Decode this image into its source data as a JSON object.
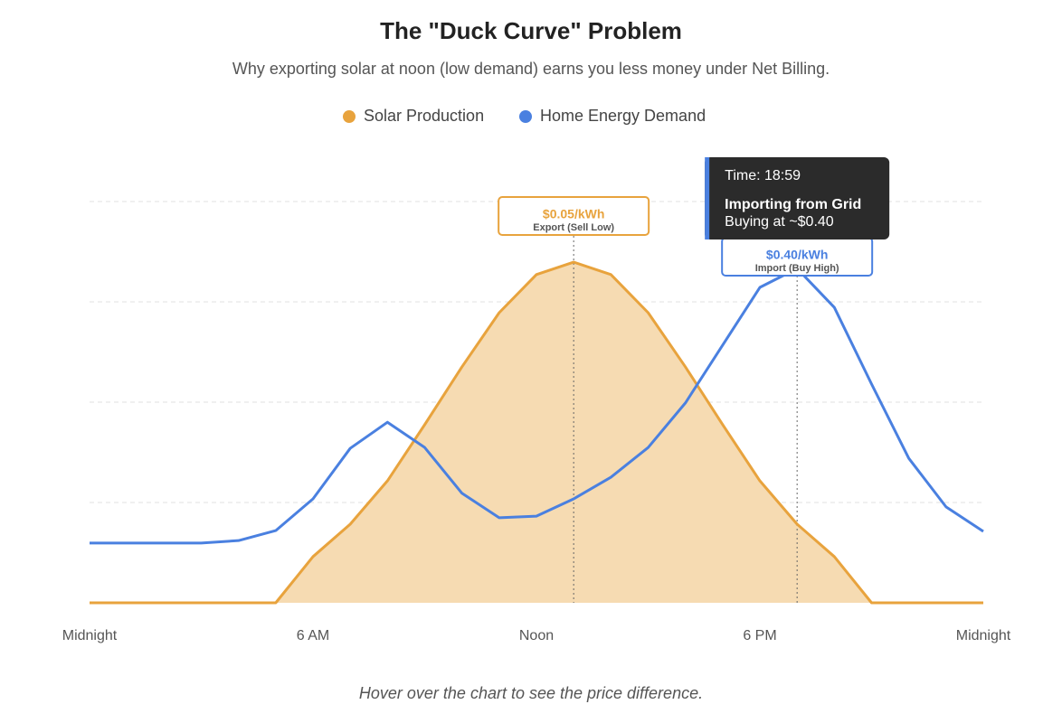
{
  "chart_data": {
    "type": "line",
    "title": "The \"Duck Curve\" Problem",
    "subtitle": "Why exporting solar at noon (low demand) earns you less money under Net Billing.",
    "x": [
      0,
      1,
      2,
      3,
      4,
      5,
      6,
      7,
      8,
      9,
      10,
      11,
      12,
      13,
      14,
      15,
      16,
      17,
      18,
      19,
      20,
      21,
      22,
      23,
      24
    ],
    "xlim": [
      0,
      24
    ],
    "xticks": [
      {
        "value": 0,
        "label": "Midnight"
      },
      {
        "value": 6,
        "label": "6 AM"
      },
      {
        "value": 12,
        "label": "Noon"
      },
      {
        "value": 18,
        "label": "6 PM"
      },
      {
        "value": 24,
        "label": "Midnight"
      }
    ],
    "ylim": [
      0,
      100
    ],
    "yticks": [
      0,
      25,
      50,
      75,
      100
    ],
    "grid": true,
    "series": [
      {
        "name": "Solar Production",
        "color": "#e8a33d",
        "fill": "#f6dbb2",
        "values": [
          0,
          0,
          0,
          0,
          0,
          0,
          11.5,
          19.6,
          30.4,
          44.4,
          58.8,
          72.3,
          81.8,
          84.9,
          81.8,
          72.3,
          58.8,
          44.4,
          30.4,
          19.6,
          11.5,
          0,
          0,
          0,
          0
        ]
      },
      {
        "name": "Home Energy Demand",
        "color": "#4a80e0",
        "values": [
          14.9,
          14.9,
          14.9,
          14.9,
          15.5,
          18.0,
          25.9,
          38.5,
          45.0,
          38.7,
          27.3,
          21.2,
          21.6,
          25.9,
          31.3,
          38.7,
          49.8,
          64.2,
          78.6,
          83.3,
          73.6,
          54.5,
          36.0,
          23.9,
          17.8
        ]
      }
    ],
    "annotations": [
      {
        "x": 13,
        "price": "$0.05/kWh",
        "label": "Export (Sell Low)",
        "color": "#e8a33d"
      },
      {
        "x": 19,
        "price": "$0.40/kWh",
        "label": "Import (Buy High)",
        "color": "#4a80e0"
      }
    ],
    "tooltip": {
      "time": "Time: 18:59",
      "title": "Importing from Grid",
      "detail": "Buying at ~$0.40"
    },
    "footnote": "Hover over the chart to see the price difference."
  }
}
